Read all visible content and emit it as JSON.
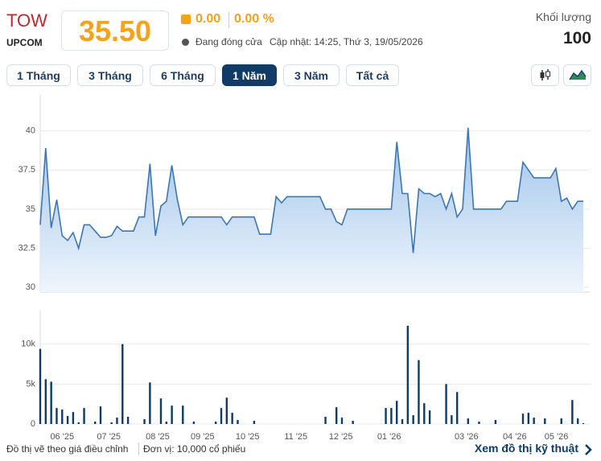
{
  "header": {
    "ticker": "TOW",
    "exchange": "UPCOM",
    "price": "35.50",
    "change": "0.00",
    "change_pct": "0.00 %",
    "status": "Đang đóng cửa",
    "updated": "Cập nhật: 14:25, Thứ 3, 19/05/2026",
    "volume_label": "Khối lượng",
    "volume": "100"
  },
  "ranges": [
    "1 Tháng",
    "3 Tháng",
    "6 Tháng",
    "1 Năm",
    "3 Năm",
    "Tất cả"
  ],
  "active_range": 3,
  "chart_data": [
    {
      "type": "area",
      "color": "#3d77b0",
      "xlim": [
        0,
        99
      ],
      "ylim": [
        29.7,
        42.3
      ],
      "yticks": [
        30,
        32.5,
        35,
        37.5,
        40
      ],
      "grid": true,
      "values": [
        34.0,
        38.9,
        33.8,
        35.6,
        33.3,
        33.0,
        33.5,
        32.5,
        34.0,
        34.0,
        33.6,
        33.2,
        33.2,
        33.3,
        33.9,
        33.6,
        33.6,
        33.6,
        34.5,
        34.5,
        37.9,
        33.3,
        35.2,
        35.5,
        37.8,
        35.6,
        34.0,
        34.5,
        34.5,
        34.5,
        34.5,
        34.5,
        34.5,
        34.5,
        34.0,
        34.5,
        34.5,
        34.5,
        34.5,
        34.5,
        33.4,
        33.4,
        33.4,
        35.8,
        35.4,
        35.8,
        35.8,
        35.8,
        35.8,
        35.8,
        35.8,
        35.8,
        35.0,
        35.0,
        34.2,
        34.0,
        35.0,
        35.0,
        35.0,
        35.0,
        35.0,
        35.0,
        35.0,
        35.0,
        35.0,
        39.3,
        36.0,
        36.0,
        32.2,
        36.3,
        36.0,
        36.0,
        35.8,
        36.0,
        35.0,
        36.0,
        34.5,
        35.0,
        40.2,
        35.0,
        35.0,
        35.0,
        35.0,
        35.0,
        35.0,
        35.5,
        35.5,
        35.5,
        38.0,
        37.5,
        37.0,
        37.0,
        37.0,
        37.0,
        37.6,
        35.5,
        35.7,
        35.0,
        35.5,
        35.5
      ]
    },
    {
      "type": "bar",
      "color": "#0f3b66",
      "xlim": [
        0,
        99
      ],
      "ylim": [
        0,
        14300
      ],
      "yticks": [
        0,
        {
          "value": 5000,
          "label": "5k"
        },
        {
          "value": 10000,
          "label": "10k"
        }
      ],
      "grid": true,
      "xticks": [
        {
          "value": 4,
          "label": "06 '25"
        },
        {
          "value": 12.5,
          "label": "07 '25"
        },
        {
          "value": 21.4,
          "label": "08 '25"
        },
        {
          "value": 29.6,
          "label": "09 '25"
        },
        {
          "value": 37.8,
          "label": "10 '25"
        },
        {
          "value": 46.6,
          "label": "11 '25"
        },
        {
          "value": 54.8,
          "label": "12 '25"
        },
        {
          "value": 63.6,
          "label": "01 '26"
        },
        {
          "value": 77.7,
          "label": "03 '26"
        },
        {
          "value": 86.5,
          "label": "04 '26"
        },
        {
          "value": 94.1,
          "label": "05 '26"
        }
      ],
      "values": [
        9400,
        5600,
        5300,
        2000,
        1800,
        1000,
        1500,
        200,
        2000,
        0,
        300,
        2200,
        0,
        200,
        800,
        10000,
        900,
        0,
        0,
        600,
        5200,
        0,
        3200,
        300,
        2300,
        0,
        2300,
        0,
        300,
        0,
        0,
        0,
        300,
        2000,
        3300,
        1400,
        500,
        0,
        0,
        400,
        0,
        0,
        0,
        0,
        0,
        0,
        0,
        0,
        0,
        0,
        0,
        0,
        900,
        0,
        2100,
        800,
        0,
        400,
        0,
        0,
        0,
        0,
        0,
        2000,
        2000,
        2900,
        600,
        12300,
        1100,
        8000,
        2600,
        1700,
        0,
        0,
        5000,
        1100,
        4000,
        0,
        700,
        0,
        300,
        0,
        0,
        500,
        0,
        0,
        0,
        0,
        1300,
        1400,
        800,
        0,
        700,
        0,
        0,
        700,
        0,
        3000,
        700,
        100
      ]
    }
  ],
  "footer": {
    "note": "Đồ thị vẽ theo giá điều chỉnh",
    "unit": "Đơn vị: 10,000 cổ phiếu",
    "link": "Xem đồ thị kỹ thuật"
  }
}
